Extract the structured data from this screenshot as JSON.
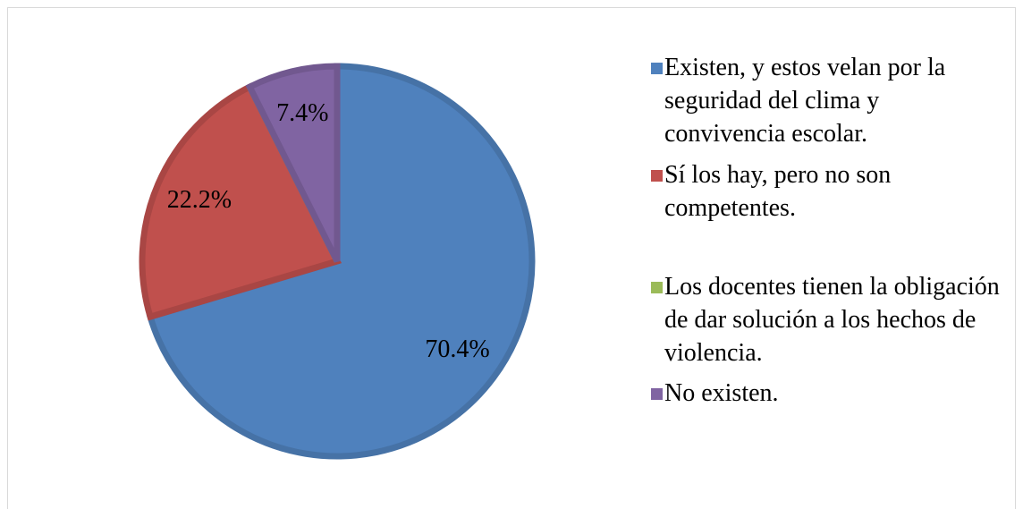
{
  "chart_data": {
    "type": "pie",
    "categories": [
      "Existen, y estos velan por la seguridad del clima y convivencia escolar.",
      "Sí los hay, pero no son competentes.",
      "Los docentes tienen la obligación de dar solución a los hechos de violencia.",
      "No existen."
    ],
    "values": [
      70.4,
      22.2,
      0,
      7.4
    ],
    "value_labels": [
      "70.4%",
      "22.2%",
      null,
      "7.4%"
    ],
    "colors": [
      "#4f81bd",
      "#c0504d",
      "#9bbb59",
      "#8064a2"
    ],
    "legend": "right"
  }
}
